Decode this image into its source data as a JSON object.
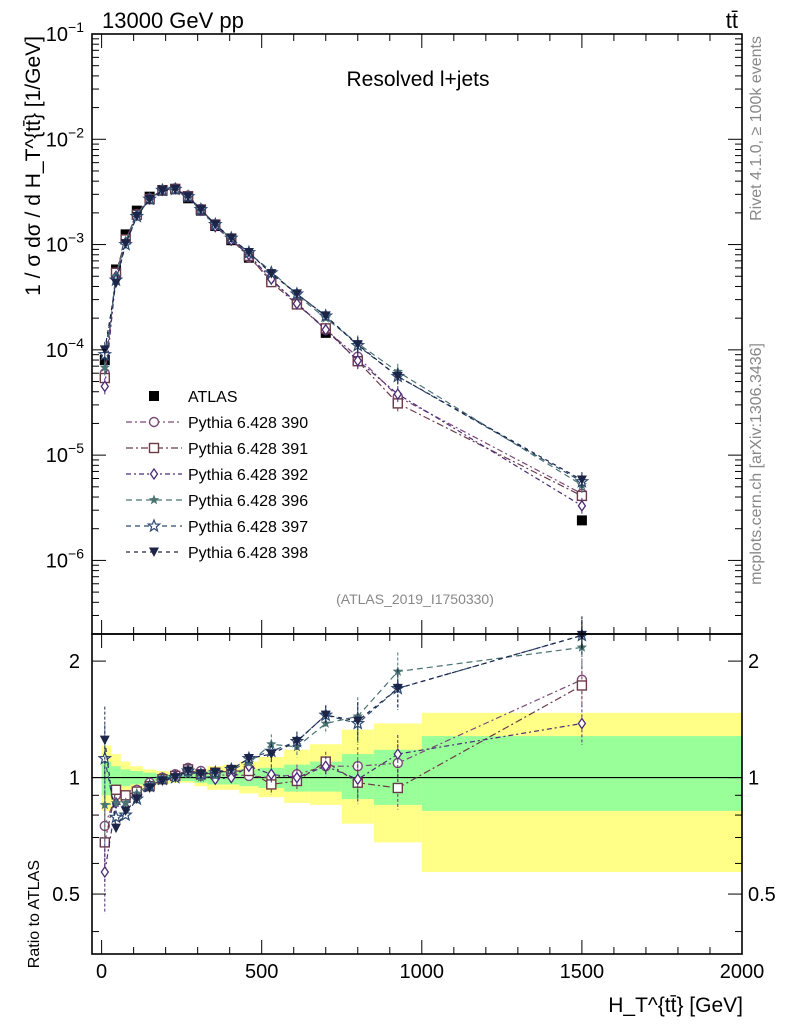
{
  "header": {
    "left": "13000 GeV pp",
    "right": "tt̄"
  },
  "side_text": {
    "rivet": "Rivet 4.1.0, ≥ 100k events",
    "mcplots": "mcplots.cern.ch [arXiv:1306.3436]"
  },
  "chart_data": [
    {
      "type": "line",
      "panel": "main",
      "title": "Resolved l+jets",
      "analysis_label": "(ATLAS_2019_I1750330)",
      "ylabel": "1 / σ dσ / d H_T^{tt̄} [1/GeV]",
      "yscale": "log",
      "ylim": [
        2e-07,
        0.1
      ],
      "xlim": [
        -30,
        2000
      ],
      "ytick_labels": [
        "10^{-6}",
        "10^{-5}",
        "10^{-4}",
        "10^{-3}",
        "10^{-2}",
        "10^{-1}"
      ],
      "legend_position": "center-left",
      "x": [
        10,
        45,
        75,
        110,
        150,
        190,
        230,
        270,
        310,
        355,
        405,
        460,
        530,
        610,
        700,
        800,
        925,
        1500
      ],
      "series": [
        {
          "name": "ATLAS",
          "color": "#000000",
          "marker": "square-filled",
          "values": [
            8e-05,
            0.00058,
            0.00125,
            0.0021,
            0.00285,
            0.0033,
            0.00335,
            0.00275,
            0.0021,
            0.0015,
            0.0011,
            0.00075,
            0.00046,
            0.000275,
            0.000145,
            8e-05,
            3.3e-05,
            2.4e-06
          ]
        },
        {
          "name": "Pythia 6.428 390",
          "color": "#7b4a78",
          "marker": "circle-open",
          "values": [
            6e-05,
            0.00052,
            0.0011,
            0.00195,
            0.00275,
            0.0033,
            0.00342,
            0.00292,
            0.00218,
            0.00152,
            0.00112,
            0.00076,
            0.00046,
            0.00028,
            0.000155,
            8.6e-05,
            3.6e-05,
            4.3e-06
          ]
        },
        {
          "name": "Pythia 6.428 391",
          "color": "#6b3a48",
          "marker": "square-open",
          "values": [
            5.4e-05,
            0.00054,
            0.00112,
            0.00192,
            0.0027,
            0.00325,
            0.00338,
            0.00288,
            0.00215,
            0.00155,
            0.00114,
            0.00078,
            0.00044,
            0.00027,
            0.00016,
            7.8e-05,
            3.1e-05,
            4.1e-06
          ]
        },
        {
          "name": "Pythia 6.428 392",
          "color": "#4b2b78",
          "marker": "diamond-open",
          "values": [
            4.5e-05,
            0.0005,
            0.00105,
            0.0019,
            0.00272,
            0.00328,
            0.0034,
            0.00285,
            0.00212,
            0.00148,
            0.0011,
            0.0008,
            0.00047,
            0.000275,
            0.000155,
            7.9e-05,
            3.8e-05,
            3.3e-06
          ]
        },
        {
          "name": "Pythia 6.428 396",
          "color": "#4a7472",
          "marker": "star-filled",
          "values": [
            6.8e-05,
            0.0005,
            0.00108,
            0.00192,
            0.00275,
            0.0033,
            0.00335,
            0.0028,
            0.0021,
            0.00152,
            0.00115,
            0.00082,
            0.00056,
            0.00033,
            0.0002,
            0.000115,
            6.2e-05,
            5.2e-06
          ]
        },
        {
          "name": "Pythia 6.428 397",
          "color": "#2d4a72",
          "marker": "star-open",
          "values": [
            9e-05,
            0.00046,
            0.001,
            0.00185,
            0.0027,
            0.00328,
            0.00335,
            0.00285,
            0.00215,
            0.00155,
            0.00115,
            0.00084,
            0.00054,
            0.00034,
            0.00021,
            0.00011,
            5.6e-05,
            5.6e-06
          ]
        },
        {
          "name": "Pythia 6.428 398",
          "color": "#1c2548",
          "marker": "triangle-down-filled",
          "values": [
            0.0001,
            0.00043,
            0.00102,
            0.00185,
            0.00268,
            0.00325,
            0.00335,
            0.00285,
            0.00215,
            0.00155,
            0.00115,
            0.00084,
            0.00053,
            0.00034,
            0.00021,
            0.000112,
            5.6e-05,
            5.8e-06
          ]
        }
      ]
    },
    {
      "type": "line",
      "panel": "ratio",
      "ylabel": "Ratio to ATLAS",
      "xlabel": "H_T^{tt̄} [GeV]",
      "yscale": "log",
      "ylim": [
        0.35,
        2.35
      ],
      "xlim": [
        -30,
        2000
      ],
      "ytick_labels": [
        "0.5",
        "1",
        "2"
      ],
      "xtick_labels": [
        "0",
        "500",
        "1000",
        "1500",
        "2000"
      ],
      "x": [
        10,
        45,
        75,
        110,
        150,
        190,
        230,
        270,
        310,
        355,
        405,
        460,
        530,
        610,
        700,
        800,
        925,
        1500
      ],
      "bands": {
        "bin_edges": [
          0,
          30,
          60,
          90,
          130,
          170,
          210,
          250,
          290,
          330,
          380,
          430,
          490,
          570,
          650,
          750,
          850,
          1000,
          2000
        ],
        "green_lo": [
          0.9,
          0.93,
          0.95,
          0.96,
          0.97,
          0.98,
          0.98,
          0.98,
          0.97,
          0.96,
          0.96,
          0.95,
          0.94,
          0.92,
          0.92,
          0.88,
          0.85,
          0.82
        ],
        "green_hi": [
          1.1,
          1.07,
          1.05,
          1.04,
          1.03,
          1.02,
          1.02,
          1.02,
          1.03,
          1.04,
          1.04,
          1.05,
          1.06,
          1.08,
          1.1,
          1.15,
          1.18,
          1.28
        ],
        "yellow_lo": [
          0.82,
          0.87,
          0.9,
          0.93,
          0.95,
          0.96,
          0.97,
          0.97,
          0.95,
          0.93,
          0.93,
          0.91,
          0.89,
          0.86,
          0.85,
          0.76,
          0.68,
          0.57
        ],
        "yellow_hi": [
          1.21,
          1.15,
          1.1,
          1.07,
          1.05,
          1.04,
          1.03,
          1.03,
          1.05,
          1.07,
          1.08,
          1.1,
          1.13,
          1.18,
          1.22,
          1.33,
          1.38,
          1.47
        ]
      },
      "series": [
        {
          "name": "Pythia 6.428 390",
          "color": "#7b4a78",
          "marker": "circle-open",
          "values": [
            0.75,
            0.9,
            0.88,
            0.93,
            0.97,
            1.0,
            1.02,
            1.06,
            1.04,
            1.01,
            1.02,
            1.01,
            1.0,
            1.02,
            1.07,
            1.07,
            1.09,
            1.79
          ]
        },
        {
          "name": "Pythia 6.428 391",
          "color": "#6b3a48",
          "marker": "square-open",
          "values": [
            0.68,
            0.93,
            0.9,
            0.92,
            0.95,
            0.99,
            1.01,
            1.05,
            1.02,
            1.03,
            1.04,
            1.04,
            0.96,
            0.98,
            1.1,
            0.97,
            0.94,
            1.73
          ]
        },
        {
          "name": "Pythia 6.428 392",
          "color": "#4b2b78",
          "marker": "diamond-open",
          "values": [
            0.57,
            0.86,
            0.84,
            0.9,
            0.95,
            0.99,
            1.01,
            1.04,
            1.01,
            0.99,
            1.0,
            1.07,
            1.02,
            1.0,
            1.07,
            0.99,
            1.15,
            1.38
          ]
        },
        {
          "name": "Pythia 6.428 396",
          "color": "#4a7472",
          "marker": "star-filled",
          "values": [
            0.85,
            0.86,
            0.86,
            0.91,
            0.96,
            1.0,
            1.0,
            1.02,
            1.0,
            1.01,
            1.05,
            1.09,
            1.22,
            1.2,
            1.38,
            1.44,
            1.88,
            2.17
          ]
        },
        {
          "name": "Pythia 6.428 397",
          "color": "#2d4a72",
          "marker": "star-open",
          "values": [
            1.12,
            0.79,
            0.8,
            0.88,
            0.95,
            0.99,
            1.0,
            1.04,
            1.02,
            1.03,
            1.05,
            1.12,
            1.17,
            1.24,
            1.45,
            1.38,
            1.7,
            2.33
          ]
        },
        {
          "name": "Pythia 6.428 398",
          "color": "#1c2548",
          "marker": "triangle-down-filled",
          "values": [
            1.25,
            0.74,
            0.82,
            0.88,
            0.94,
            0.98,
            1.0,
            1.04,
            1.02,
            1.03,
            1.05,
            1.12,
            1.15,
            1.24,
            1.45,
            1.4,
            1.7,
            2.33
          ]
        }
      ]
    }
  ]
}
